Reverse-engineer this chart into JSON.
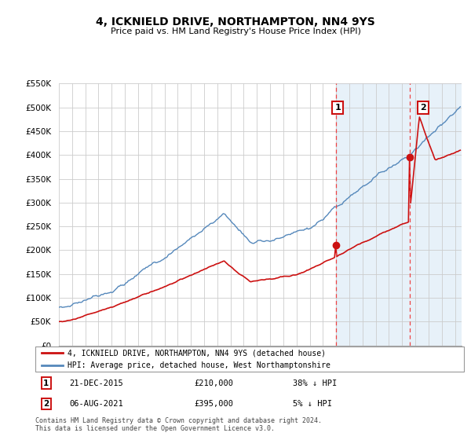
{
  "title": "4, ICKNIELD DRIVE, NORTHAMPTON, NN4 9YS",
  "subtitle": "Price paid vs. HM Land Registry's House Price Index (HPI)",
  "legend_line1": "4, ICKNIELD DRIVE, NORTHAMPTON, NN4 9YS (detached house)",
  "legend_line2": "HPI: Average price, detached house, West Northamptonshire",
  "annotation1_date": "21-DEC-2015",
  "annotation1_price": "£210,000",
  "annotation1_pct": "38% ↓ HPI",
  "annotation2_date": "06-AUG-2021",
  "annotation2_price": "£395,000",
  "annotation2_pct": "5% ↓ HPI",
  "footer": "Contains HM Land Registry data © Crown copyright and database right 2024.\nThis data is licensed under the Open Government Licence v3.0.",
  "hpi_color": "#5588bb",
  "price_color": "#cc1111",
  "vline_color": "#ee4444",
  "marker_color": "#cc1111",
  "sale1_year": 2015.97,
  "sale1_price": 210000,
  "sale2_year": 2021.59,
  "sale2_price": 395000,
  "ylim_min": 0,
  "ylim_max": 550000,
  "xlim_min": 1995,
  "xlim_max": 2025.5,
  "grid_color": "#cccccc",
  "shaded_region_color": "#d8e8f5"
}
